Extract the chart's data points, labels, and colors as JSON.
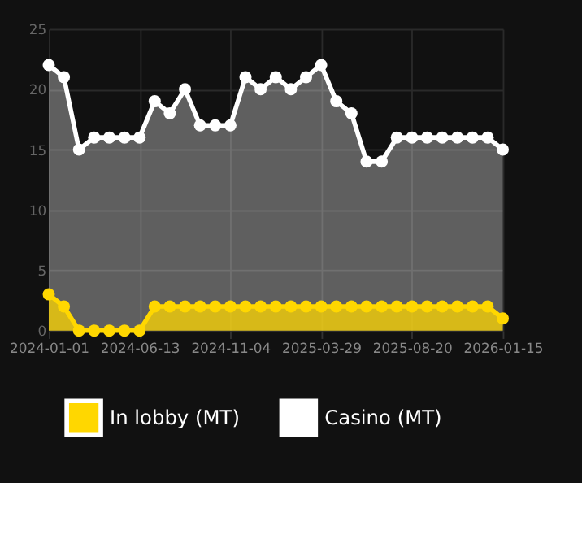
{
  "chart_data": {
    "type": "area",
    "categories": [
      "2024-01-01",
      null,
      null,
      null,
      null,
      null,
      "2024-06-13",
      null,
      null,
      null,
      null,
      null,
      "2024-11-04",
      null,
      null,
      null,
      null,
      null,
      "2025-03-29",
      null,
      null,
      null,
      null,
      null,
      "2025-08-20",
      null,
      null,
      null,
      null,
      null,
      "2026-01-15"
    ],
    "series": [
      {
        "name": "In lobby (MT)",
        "color": "#ffd700",
        "values": [
          3,
          2,
          0,
          0,
          0,
          0,
          0,
          2,
          2,
          2,
          2,
          2,
          2,
          2,
          2,
          2,
          2,
          2,
          2,
          2,
          2,
          2,
          2,
          2,
          2,
          2,
          2,
          2,
          2,
          2,
          1
        ]
      },
      {
        "name": "Casino (MT)",
        "color": "#ffffff",
        "values": [
          22,
          21,
          15,
          16,
          16,
          16,
          16,
          19,
          18,
          20,
          17,
          17,
          17,
          21,
          20,
          21,
          20,
          21,
          22,
          19,
          18,
          14,
          14,
          16,
          16,
          16,
          16,
          16,
          16,
          16,
          15
        ]
      }
    ],
    "ylim": [
      0,
      25
    ],
    "yticks": [
      0,
      5,
      10,
      15,
      20,
      25
    ],
    "grid": true,
    "legend": "bottom",
    "marker": "circle"
  }
}
